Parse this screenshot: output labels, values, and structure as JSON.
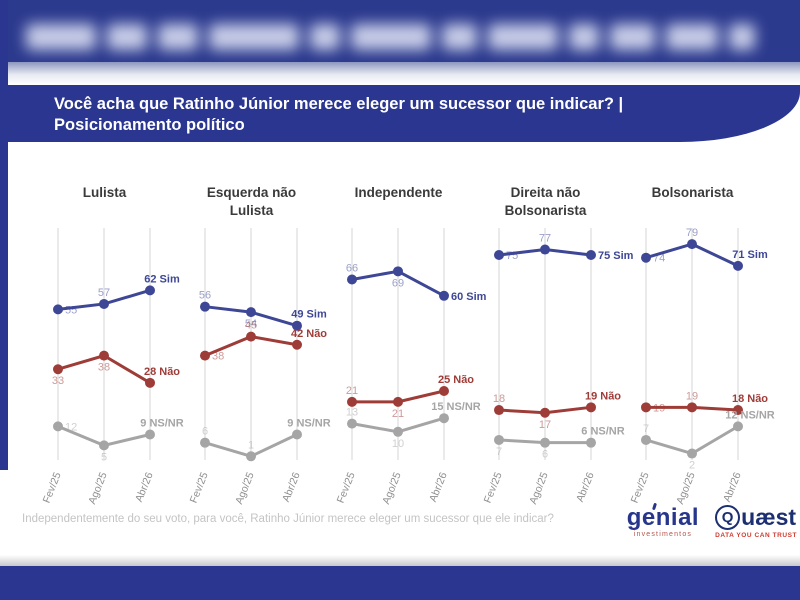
{
  "banner": {
    "line1": "Você acha que Ratinho Júnior merece eleger um sucessor que indicar? |",
    "line2": "Posicionamento político"
  },
  "chart_data": {
    "type": "line",
    "categories": [
      "Fev/25",
      "Ago/25",
      "Abr/26"
    ],
    "series_labels": [
      "Sim",
      "Não",
      "NS/NR"
    ],
    "unit": "%",
    "ylim": [
      0,
      100
    ],
    "grid": "vertical",
    "legend_position": "inline-right",
    "colors": {
      "Sim": "#3e4795",
      "Não": "#9e3c38",
      "NS/NR": "#a5a5a5"
    },
    "panels": [
      {
        "title": "Lulista",
        "series": [
          {
            "name": "Sim",
            "values": [
              55,
              57,
              62
            ]
          },
          {
            "name": "Não",
            "values": [
              33,
              38,
              28
            ]
          },
          {
            "name": "NS/NR",
            "values": [
              12,
              5,
              9
            ]
          }
        ]
      },
      {
        "title": "Esquerda não Lulista",
        "series": [
          {
            "name": "Sim",
            "values": [
              56,
              54,
              49
            ]
          },
          {
            "name": "Não",
            "values": [
              38,
              45,
              42
            ]
          },
          {
            "name": "NS/NR",
            "values": [
              6,
              1,
              9
            ]
          }
        ]
      },
      {
        "title": "Independente",
        "series": [
          {
            "name": "Sim",
            "values": [
              66,
              69,
              60
            ]
          },
          {
            "name": "Não",
            "values": [
              21,
              21,
              25
            ]
          },
          {
            "name": "NS/NR",
            "values": [
              13,
              10,
              15
            ]
          }
        ]
      },
      {
        "title": "Direita não Bolsonarista",
        "series": [
          {
            "name": "Sim",
            "values": [
              75,
              77,
              75
            ]
          },
          {
            "name": "Não",
            "values": [
              18,
              17,
              19
            ]
          },
          {
            "name": "NS/NR",
            "values": [
              7,
              6,
              6
            ]
          }
        ]
      },
      {
        "title": "Bolsonarista",
        "series": [
          {
            "name": "Sim",
            "values": [
              74,
              79,
              71
            ]
          },
          {
            "name": "Não",
            "values": [
              19,
              19,
              18
            ]
          },
          {
            "name": "NS/NR",
            "values": [
              7,
              2,
              12
            ]
          }
        ]
      }
    ]
  },
  "footer": {
    "question": "Independentemente do seu voto, para você, Ratinho Júnior merece eleger um sucessor que ele indicar?"
  },
  "logos": {
    "genial": {
      "text": "genial",
      "sub": "investimentos"
    },
    "quaest": {
      "text": "Quæst",
      "tagline": "DATA YOU CAN TRUST"
    }
  },
  "colors": {
    "navy": "#2b3690",
    "background": "#ffffff"
  }
}
